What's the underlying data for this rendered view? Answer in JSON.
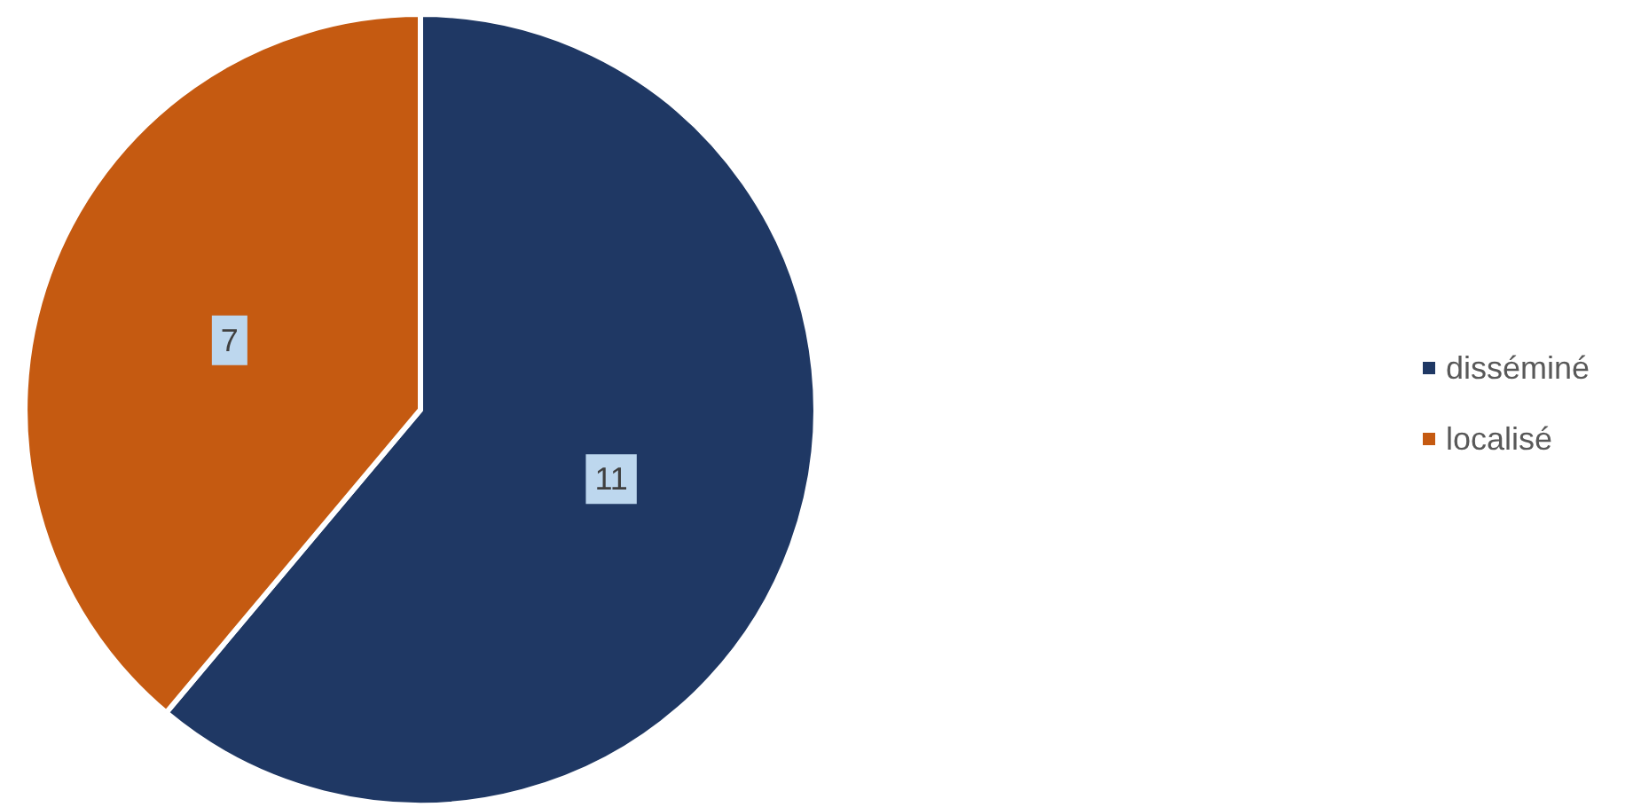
{
  "chart_data": {
    "type": "pie",
    "categories": [
      "disséminé",
      "localisé"
    ],
    "values": [
      11,
      7
    ],
    "colors": [
      "#1f3864",
      "#c55a11"
    ],
    "data_labels": true,
    "legend": "right"
  }
}
